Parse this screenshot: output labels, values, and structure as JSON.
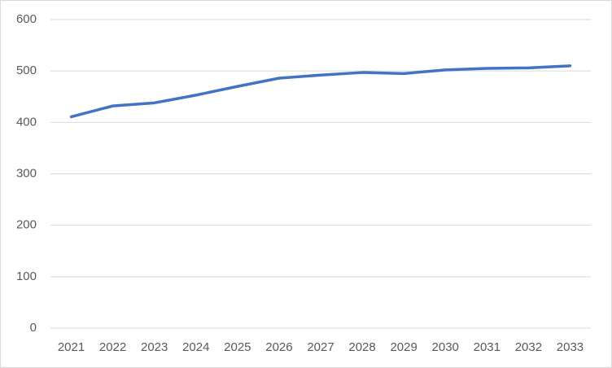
{
  "chart_data": {
    "type": "line",
    "categories": [
      "2021",
      "2022",
      "2023",
      "2024",
      "2025",
      "2026",
      "2027",
      "2028",
      "2029",
      "2030",
      "2031",
      "2032",
      "2033"
    ],
    "series": [
      {
        "color": "#4472c4",
        "values": [
          411,
          432,
          438,
          453,
          470,
          486,
          492,
          497,
          495,
          502,
          505,
          506,
          510
        ]
      }
    ],
    "ylim": [
      0,
      600
    ],
    "yticks": [
      0,
      100,
      200,
      300,
      400,
      500,
      600
    ],
    "grid": true
  }
}
